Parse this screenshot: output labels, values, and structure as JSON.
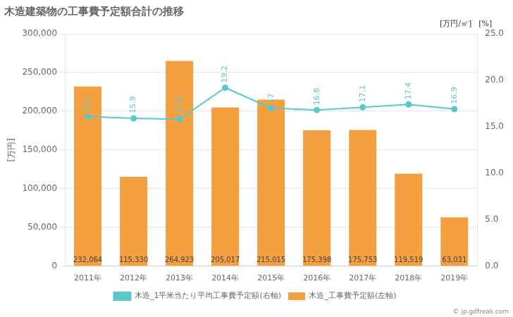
{
  "chart_data": {
    "type": "bar",
    "title": "木造建築物の工事費予定額合計の推移",
    "categories": [
      "2011年",
      "2012年",
      "2013年",
      "2014年",
      "2015年",
      "2016年",
      "2017年",
      "2018年",
      "2019年"
    ],
    "series": [
      {
        "name": "木造_工事費予定額(左軸)",
        "type": "bar",
        "color": "#f5a040",
        "values": [
          232064,
          115330,
          264923,
          205017,
          215015,
          175398,
          175753,
          119519,
          63031
        ],
        "value_labels": [
          "232,064",
          "115,330",
          "264,923",
          "205,017",
          "215,015",
          "175,398",
          "175,753",
          "119,519",
          "63,031"
        ]
      },
      {
        "name": "木造_1平米当たり平均工事費予定額(右軸)",
        "type": "line",
        "color": "#5bc8c8",
        "marker": "circle",
        "axis": "y2",
        "values": [
          16.1,
          15.9,
          15.8,
          19.2,
          17.0,
          16.8,
          17.1,
          17.4,
          16.9
        ],
        "value_labels": [
          "16.1",
          "15.9",
          "15.8",
          "19.2",
          "17",
          "16.8",
          "17.1",
          "17.4",
          "16.9"
        ]
      }
    ],
    "y_label": "[万円]",
    "y2_label": "[万円/㎡]",
    "annotations": [
      "[%]",
      "© jp.gdfreak.com"
    ],
    "ylim": [
      0,
      300000
    ],
    "yticks": [
      {
        "value": 0,
        "label": "0"
      },
      {
        "value": 50000,
        "label": "50,000"
      },
      {
        "value": 100000,
        "label": "100,000"
      },
      {
        "value": 150000,
        "label": "150,000"
      },
      {
        "value": 200000,
        "label": "200,000"
      },
      {
        "value": 250000,
        "label": "250,000"
      },
      {
        "value": 300000,
        "label": "300,000"
      }
    ],
    "y2lim": [
      0,
      25.0
    ],
    "y2ticks": [
      {
        "value": 0.0,
        "label": "0.0"
      },
      {
        "value": 5.0,
        "label": "5.0"
      },
      {
        "value": 10.0,
        "label": "10.0"
      },
      {
        "value": 15.0,
        "label": "15.0"
      },
      {
        "value": 20.0,
        "label": "20.0"
      },
      {
        "value": 25.0,
        "label": "25.0"
      }
    ],
    "grid": true,
    "legend": "bottom",
    "data_labels": true
  }
}
